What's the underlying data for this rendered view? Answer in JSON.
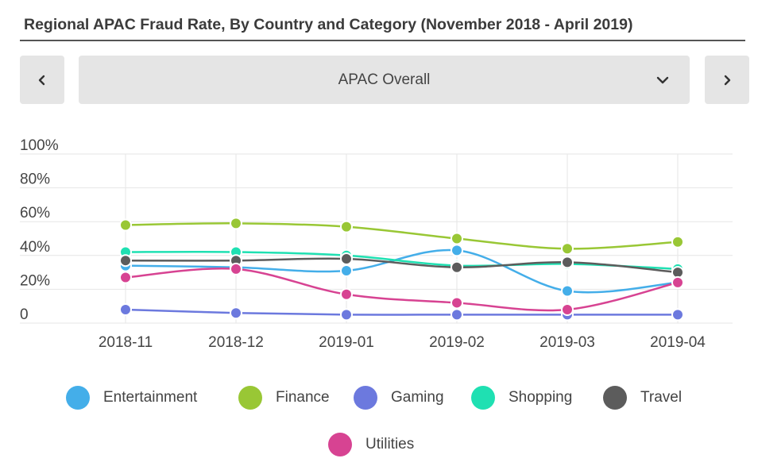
{
  "header": {
    "title": "Regional APAC Fraud Rate, By Country and Category (November 2018 - April 2019)"
  },
  "selector": {
    "selected": "APAC Overall",
    "prev_icon": "chevron-left-icon",
    "next_icon": "chevron-right-icon",
    "dropdown_icon": "chevron-down-icon"
  },
  "chart_data": {
    "type": "line",
    "title": "",
    "xlabel": "",
    "ylabel": "",
    "x": [
      "2018-11",
      "2018-12",
      "2019-01",
      "2019-02",
      "2019-03",
      "2019-04"
    ],
    "y_ticks": [
      "100%",
      "80%",
      "60%",
      "40%",
      "20%",
      "0"
    ],
    "ylim": [
      0,
      100
    ],
    "grid": true,
    "smooth": true,
    "legend_position": "bottom",
    "series": [
      {
        "name": "Entertainment",
        "color": "#44aee9",
        "values": [
          34,
          33,
          31,
          43,
          19,
          24
        ]
      },
      {
        "name": "Finance",
        "color": "#99c735",
        "values": [
          58,
          59,
          57,
          50,
          44,
          48
        ]
      },
      {
        "name": "Gaming",
        "color": "#6c79de",
        "values": [
          8,
          6,
          5,
          5,
          5,
          5
        ]
      },
      {
        "name": "Shopping",
        "color": "#1fe0b2",
        "values": [
          42,
          42,
          40,
          34,
          35,
          32
        ]
      },
      {
        "name": "Travel",
        "color": "#5c5c5c",
        "values": [
          37,
          37,
          38,
          33,
          36,
          30
        ]
      },
      {
        "name": "Utilities",
        "color": "#d74392",
        "values": [
          27,
          32,
          17,
          12,
          8,
          24
        ]
      }
    ]
  }
}
